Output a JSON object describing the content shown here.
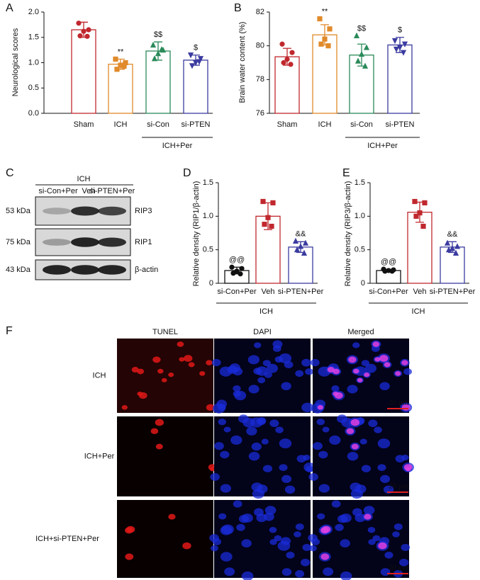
{
  "chart_data": [
    {
      "type": "bar",
      "panel": "A",
      "ylabel": "Neurological scores",
      "categories": [
        "Sham",
        "ICH",
        "si-Con",
        "si-PTEN"
      ],
      "values": [
        1.65,
        0.97,
        1.23,
        1.05
      ],
      "errors": [
        0.15,
        0.1,
        0.18,
        0.1
      ],
      "colors": [
        "#c0282e",
        "#e08a2a",
        "#2b8a5a",
        "#3b3ba0"
      ],
      "markers": [
        "circle",
        "square",
        "triangle",
        "triangle-down"
      ],
      "points": [
        [
          1.78,
          1.65,
          1.62,
          1.53,
          1.52
        ],
        [
          1.07,
          1.0,
          0.95,
          0.87,
          0.93
        ],
        [
          1.35,
          1.25,
          1.18,
          1.08,
          1.26
        ],
        [
          1.15,
          1.08,
          1.0,
          0.94,
          1.02
        ]
      ],
      "annotations": [
        null,
        "**",
        "$$",
        "$"
      ],
      "group_label": "ICH+Per",
      "ylim": [
        0,
        2
      ],
      "yticks": [
        {
          "value": 0,
          "label": "0.0"
        },
        0.5,
        {
          "value": 1,
          "label": "1.0"
        },
        1.5,
        {
          "value": 2,
          "label": "2.0"
        }
      ]
    },
    {
      "type": "bar",
      "panel": "B",
      "ylabel": "Brain water content (%)",
      "categories": [
        "Sham",
        "ICH",
        "si-Con",
        "si-PTEN"
      ],
      "values": [
        79.35,
        80.65,
        79.45,
        80.05
      ],
      "errors": [
        0.5,
        0.6,
        0.65,
        0.45
      ],
      "colors": [
        "#c0282e",
        "#e08a2a",
        "#2b8a5a",
        "#3b3ba0"
      ],
      "markers": [
        "circle",
        "square",
        "triangle",
        "triangle-down"
      ],
      "points": [
        [
          80.1,
          79.6,
          79.2,
          79.0,
          78.9
        ],
        [
          81.6,
          81.0,
          80.4,
          80.1,
          80.0
        ],
        [
          80.6,
          79.9,
          79.5,
          79.1,
          78.8
        ],
        [
          80.3,
          80.1,
          79.9,
          79.8,
          79.6
        ]
      ],
      "annotations": [
        null,
        "**",
        "$$",
        "$"
      ],
      "group_label": "ICH+Per",
      "ylim": [
        76,
        82
      ],
      "yticks": [
        76,
        78,
        80,
        82
      ]
    },
    {
      "type": "bar",
      "panel": "D",
      "ylabel": "Relative density (RIP1/β-actin)",
      "categories": [
        "si-Con+Per",
        "Veh",
        "si-PTEN+Per"
      ],
      "values": [
        0.19,
        1.0,
        0.54
      ],
      "errors": [
        0.05,
        0.2,
        0.08
      ],
      "colors": [
        "#111111",
        "#c0282e",
        "#3b3ba0"
      ],
      "markers": [
        "circle",
        "square",
        "triangle"
      ],
      "points": [
        [
          0.24,
          0.22,
          0.18,
          0.15,
          0.14
        ],
        [
          1.22,
          1.2,
          0.98,
          0.88,
          0.85
        ],
        [
          0.63,
          0.6,
          0.55,
          0.5,
          0.45
        ]
      ],
      "annotations": [
        "@@",
        null,
        "&&"
      ],
      "group_label": "ICH",
      "ylim": [
        0,
        1.5
      ],
      "yticks": [
        0,
        0.5,
        {
          "value": 1,
          "label": "1.0"
        },
        1.5
      ]
    },
    {
      "type": "bar",
      "panel": "E",
      "ylabel": "Relative density (RIP3/β-actin)",
      "categories": [
        "si-Con+Per",
        "Veh",
        "si-PTEN+Per"
      ],
      "values": [
        0.19,
        1.06,
        0.54
      ],
      "errors": [
        0.02,
        0.15,
        0.08
      ],
      "colors": [
        "#111111",
        "#c0282e",
        "#3b3ba0"
      ],
      "markers": [
        "circle",
        "square",
        "triangle"
      ],
      "points": [
        [
          0.21,
          0.2,
          0.19,
          0.18,
          0.18
        ],
        [
          1.22,
          1.2,
          1.05,
          1.0,
          0.85
        ],
        [
          0.6,
          0.55,
          0.52,
          0.5,
          0.45
        ]
      ],
      "annotations": [
        "@@",
        null,
        "&&"
      ],
      "group_label": "ICH",
      "ylim": [
        0,
        1.5
      ],
      "yticks": [
        0,
        0.5,
        {
          "value": 1,
          "label": "1.0"
        },
        1.5
      ]
    }
  ],
  "blot": {
    "panel": "C",
    "group": "ICH",
    "lanes": [
      "si-Con+Per",
      "Veh",
      "si-PTEN+Per"
    ],
    "rows": [
      {
        "size": "53 kDa",
        "protein": "RIP3"
      },
      {
        "size": "75 kDa",
        "protein": "RIP1"
      },
      {
        "size": "43 kDa",
        "protein": "β-actin"
      }
    ]
  },
  "images": {
    "panel": "F",
    "columns": [
      "TUNEL",
      "DAPI",
      "Merged"
    ],
    "rows": [
      "ICH",
      "ICH+Per",
      "ICH+si-PTEN+Per"
    ],
    "scale": "20 μm"
  }
}
